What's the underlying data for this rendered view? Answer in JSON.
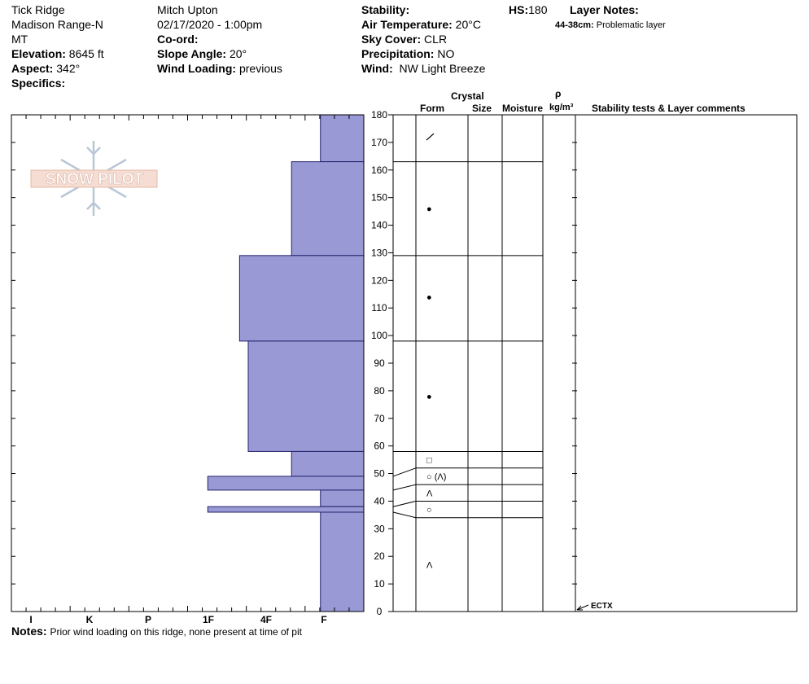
{
  "header": {
    "col1": {
      "location": "Tick Ridge",
      "range": "Madison Range-N",
      "state": "MT",
      "elevation_label": "Elevation:",
      "elevation_value": "8645 ft",
      "aspect_label": "Aspect:",
      "aspect_value": "342°",
      "specifics_label": "Specifics:"
    },
    "col2": {
      "observer": "Mitch Upton",
      "datetime": "02/17/2020 - 1:00pm",
      "coord_label": "Co-ord:",
      "slope_label": "Slope Angle:",
      "slope_value": "20°",
      "wind_loading_label": "Wind Loading:",
      "wind_loading_value": "previous"
    },
    "col3": {
      "stability_label": "Stability:",
      "air_temp_label": "Air Temperature:",
      "air_temp_value": "20°C",
      "sky_label": "Sky Cover:",
      "sky_value": "CLR",
      "precip_label": "Precipitation:",
      "precip_value": "NO",
      "wind_label": "Wind:",
      "wind_value": "NW Light Breeze"
    },
    "hs_label": "HS:",
    "hs_value": "180",
    "layer_notes_label": "Layer Notes:",
    "layer_note_depth": "44-38cm:",
    "layer_note_text": "Problematic layer"
  },
  "logo_text": "SNOW PILOT",
  "notes_label": "Notes:",
  "notes_text": "Prior wind loading on this ridge, none present at time of pit",
  "table_headers": {
    "crystal": "Crystal",
    "form": "Form",
    "size": "Size",
    "moisture": "Moisture",
    "rho": "ρ",
    "density_unit": "kg/m³",
    "stability": "Stability tests & Layer comments"
  },
  "test_marker": {
    "label": "ECTX",
    "depth": 0
  },
  "colors": {
    "bar_fill": "#9999d6",
    "bar_stroke": "#22226a",
    "line": "#000000",
    "logo": "#b8c6d6"
  },
  "chart_data": {
    "type": "bar",
    "title": "",
    "x_axis": {
      "ticks": [
        "I",
        "K",
        "P",
        "1F",
        "4F",
        "F"
      ],
      "orientation": "reversed"
    },
    "y_axis": {
      "range": [
        0,
        180
      ],
      "ticks": [
        0,
        10,
        20,
        30,
        40,
        50,
        60,
        70,
        80,
        90,
        100,
        110,
        120,
        130,
        140,
        150,
        160,
        170,
        180
      ],
      "unit": "cm"
    },
    "hardness_layers": [
      {
        "top": 180,
        "bottom": 163,
        "hardness": 1.5
      },
      {
        "top": 163,
        "bottom": 129,
        "hardness": 2.5
      },
      {
        "top": 129,
        "bottom": 98,
        "hardness": 4.3
      },
      {
        "top": 98,
        "bottom": 58,
        "hardness": 4.0
      },
      {
        "top": 58,
        "bottom": 49,
        "hardness": 2.5
      },
      {
        "top": 49,
        "bottom": 44,
        "hardness": 5.4
      },
      {
        "top": 44,
        "bottom": 38,
        "hardness": 1.5
      },
      {
        "top": 38,
        "bottom": 36,
        "hardness": 5.4
      },
      {
        "top": 36,
        "bottom": 0,
        "hardness": 1.5
      }
    ],
    "layer_boundaries": [
      180,
      163,
      129,
      98,
      58,
      52,
      46,
      40,
      34
    ],
    "layer_boundary_feet": [
      null,
      null,
      null,
      null,
      null,
      49,
      44,
      38,
      36
    ],
    "crystal_forms": [
      {
        "depth": 172,
        "symbol": "/"
      },
      {
        "depth": 146,
        "symbol": "●"
      },
      {
        "depth": 114,
        "symbol": "●"
      },
      {
        "depth": 78,
        "symbol": "●"
      },
      {
        "depth": 55,
        "symbol": "□"
      },
      {
        "depth": 49,
        "symbol": "○ (Λ)"
      },
      {
        "depth": 43,
        "symbol": "Λ"
      },
      {
        "depth": 37,
        "symbol": "○"
      },
      {
        "depth": 17,
        "symbol": "Λ"
      }
    ]
  }
}
